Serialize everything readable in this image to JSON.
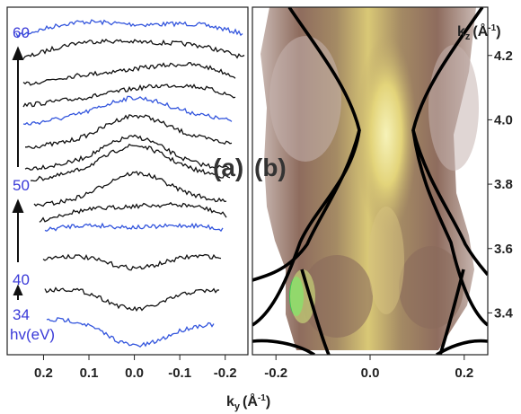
{
  "chart_data": [
    {
      "panel": "(a)",
      "type": "line",
      "xlabel_main": "k",
      "xlabel_sub": "y",
      "xlabel_unit": "(Å",
      "xlabel_exp": "-1",
      "xlabel_close": ")",
      "x_ticks": [
        "0.2",
        "0.1",
        "0.0",
        "-0.1",
        "-0.2"
      ],
      "x_tick_values": [
        0.2,
        0.1,
        0.0,
        -0.1,
        -0.2
      ],
      "xlim": [
        0.28,
        -0.25
      ],
      "photon_energy_labels": [
        "60",
        "50",
        "40",
        "34",
        "hv(eV)"
      ],
      "series_count": 14,
      "highlighted_series_color": "#3355dd",
      "base_series_color": "#111111"
    },
    {
      "panel": "(b)",
      "type": "heatmap",
      "ylabel_main": "k",
      "ylabel_sub": "z",
      "ylabel_unit": "(Å",
      "ylabel_exp": "-1",
      "ylabel_close": ")",
      "x_ticks": [
        "-0.2",
        "0.0",
        "0.2"
      ],
      "x_tick_values": [
        -0.2,
        0.0,
        0.2
      ],
      "xlim": [
        -0.25,
        0.25
      ],
      "y_ticks": [
        "4.2",
        "4.0",
        "3.8",
        "3.6",
        "3.4"
      ],
      "y_tick_values": [
        4.2,
        4.0,
        3.8,
        3.6,
        3.4
      ],
      "ylim": [
        3.27,
        4.35
      ],
      "colormap": [
        "#f4f0c0",
        "#e6dc80",
        "#b5a06c",
        "#8f6e5c",
        "#7a5a4e",
        "#c8b8b4"
      ]
    }
  ]
}
